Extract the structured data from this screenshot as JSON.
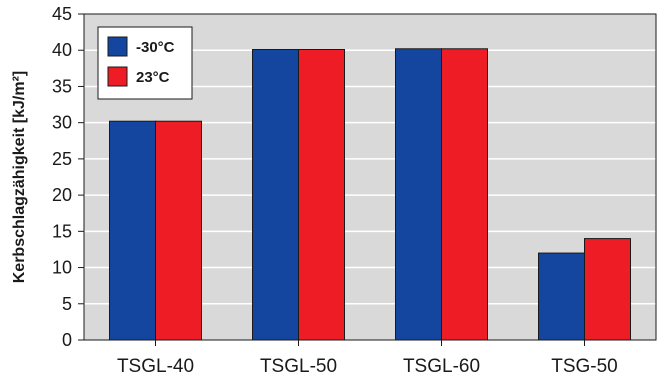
{
  "chart_data": {
    "type": "bar",
    "categories": [
      "TSGL-40",
      "TSGL-50",
      "TSGL-60",
      "TSG-50"
    ],
    "series": [
      {
        "name": "-30°C",
        "values": [
          30.2,
          40.1,
          40.2,
          12.0
        ]
      },
      {
        "name": "23°C",
        "values": [
          30.2,
          40.1,
          40.2,
          14.0
        ]
      }
    ],
    "ylabel": "Kerbschlagzähigkeit [kJ/m²]",
    "xlabel": "",
    "ylim": [
      0,
      45
    ],
    "yticks": [
      0,
      5,
      10,
      15,
      20,
      25,
      30,
      35,
      40,
      45
    ],
    "grid": true,
    "legend_position": "top-left"
  },
  "colors": {
    "plot_background": "#d9d9d9",
    "grid": "#ffffff",
    "series": [
      "#1446a0",
      "#ee1c25"
    ]
  }
}
